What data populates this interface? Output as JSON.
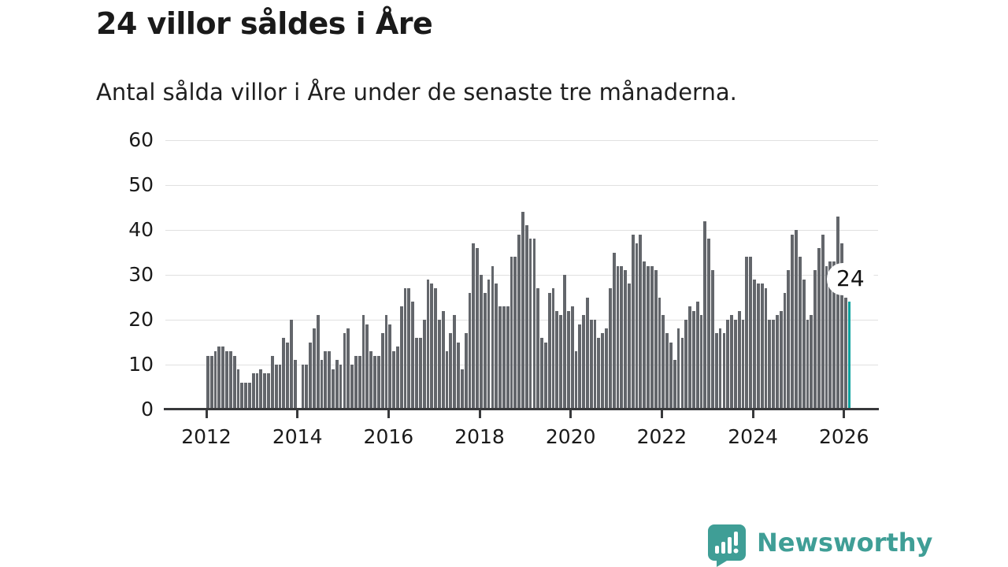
{
  "header": {
    "title": "24 villor såldes i Åre",
    "subtitle": "Antal sålda villor i Åre under de senaste tre månaderna."
  },
  "chart_data": {
    "type": "bar",
    "title": "24 villor såldes i Åre",
    "subtitle": "Antal sålda villor i Åre under de senaste tre månaderna.",
    "frequency": "monthly",
    "x_start": "2012-01",
    "x_end": "2026-02",
    "values": [
      12,
      12,
      13,
      14,
      14,
      13,
      13,
      12,
      9,
      6,
      6,
      6,
      8,
      8,
      9,
      8,
      8,
      12,
      10,
      10,
      16,
      15,
      20,
      11,
      0,
      10,
      10,
      15,
      18,
      21,
      11,
      13,
      13,
      9,
      11,
      10,
      17,
      18,
      10,
      12,
      12,
      21,
      19,
      13,
      12,
      12,
      17,
      21,
      19,
      13,
      14,
      23,
      27,
      27,
      24,
      16,
      16,
      20,
      29,
      28,
      27,
      20,
      22,
      13,
      17,
      21,
      15,
      9,
      17,
      26,
      37,
      36,
      30,
      26,
      29,
      32,
      28,
      23,
      23,
      23,
      34,
      34,
      39,
      44,
      41,
      38,
      38,
      27,
      16,
      15,
      26,
      27,
      22,
      21,
      30,
      22,
      23,
      13,
      19,
      21,
      25,
      20,
      20,
      16,
      17,
      18,
      27,
      35,
      32,
      32,
      31,
      28,
      39,
      37,
      39,
      33,
      32,
      32,
      31,
      25,
      21,
      17,
      15,
      11,
      18,
      16,
      20,
      23,
      22,
      24,
      21,
      42,
      38,
      31,
      17,
      18,
      17,
      20,
      21,
      20,
      22,
      20,
      34,
      34,
      29,
      28,
      28,
      27,
      20,
      20,
      21,
      22,
      26,
      31,
      39,
      40,
      34,
      29,
      20,
      21,
      31,
      36,
      39,
      32,
      33,
      33,
      43,
      37,
      25,
      24
    ],
    "highlight_index": 169,
    "highlight_value_label": "24",
    "bar_color": "#63666b",
    "highlight_color": "#0ca39f",
    "ylim": [
      0,
      60
    ],
    "y_ticks": [
      0,
      10,
      20,
      30,
      40,
      50,
      60
    ],
    "x_tick_labels": [
      "2012",
      "2014",
      "2016",
      "2018",
      "2020",
      "2022",
      "2024",
      "2026"
    ],
    "grid": "horizontal",
    "legend": "none"
  },
  "footer": {
    "brand": "Newsworthy",
    "brand_color": "#3f9e96",
    "logo_icon": "bar-chart-speech-bubble-icon"
  }
}
